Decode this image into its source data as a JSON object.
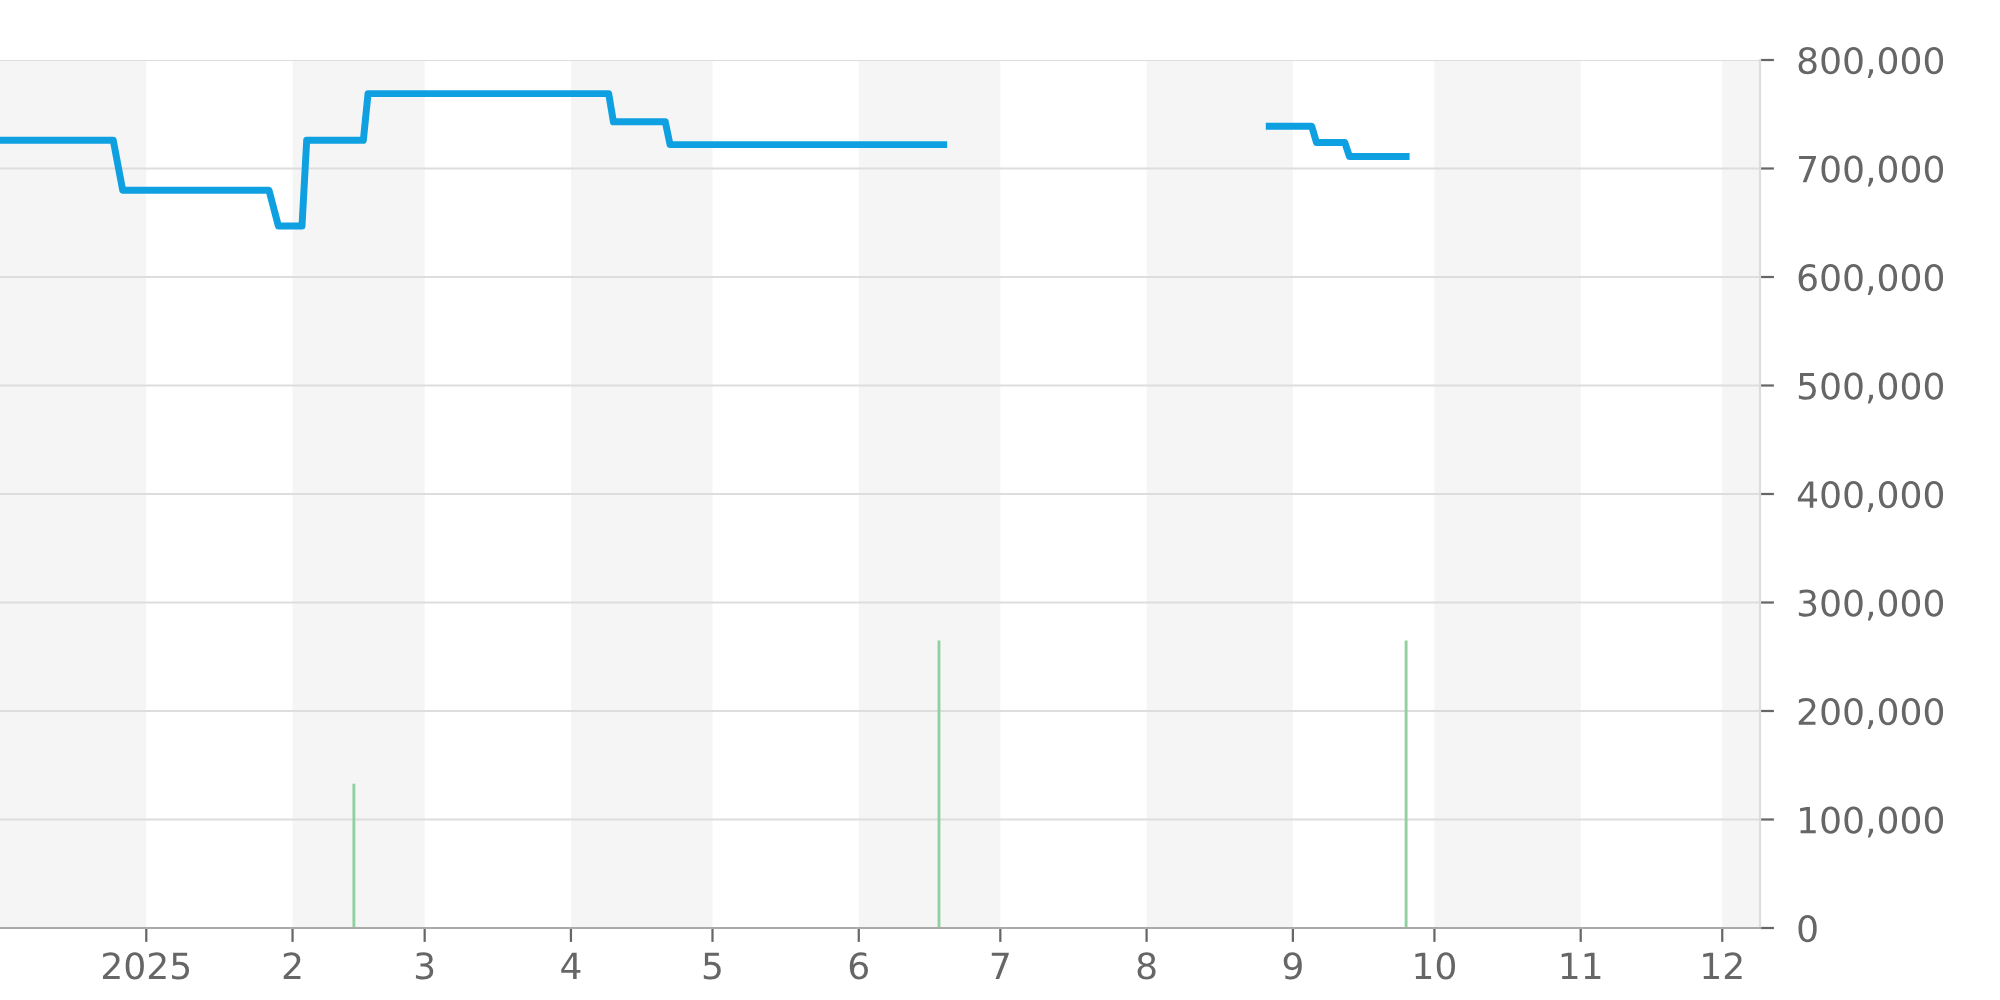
{
  "chart_data": {
    "type": "line",
    "xlim": [
      "2024-12-01",
      "2025-12-09"
    ],
    "xticks": [
      {
        "value": "2025-01-01",
        "label": "2025"
      },
      {
        "value": "2025-02-01",
        "label": "2"
      },
      {
        "value": "2025-03-01",
        "label": "3"
      },
      {
        "value": "2025-04-01",
        "label": "4"
      },
      {
        "value": "2025-05-01",
        "label": "5"
      },
      {
        "value": "2025-06-01",
        "label": "6"
      },
      {
        "value": "2025-07-01",
        "label": "7"
      },
      {
        "value": "2025-08-01",
        "label": "8"
      },
      {
        "value": "2025-09-01",
        "label": "9"
      },
      {
        "value": "2025-10-01",
        "label": "10"
      },
      {
        "value": "2025-11-01",
        "label": "11"
      },
      {
        "value": "2025-12-01",
        "label": "12"
      }
    ],
    "ylim": [
      0,
      800000
    ],
    "yticks": [
      {
        "value": 0,
        "label": "0"
      },
      {
        "value": 100000,
        "label": "100,000"
      },
      {
        "value": 200000,
        "label": "200,000"
      },
      {
        "value": 300000,
        "label": "300,000"
      },
      {
        "value": 400000,
        "label": "400,000"
      },
      {
        "value": 500000,
        "label": "500,000"
      },
      {
        "value": 600000,
        "label": "600,000"
      },
      {
        "value": 700000,
        "label": "700,000"
      },
      {
        "value": 800000,
        "label": "800,000"
      }
    ],
    "grid": "y",
    "marker": "none",
    "line_style": "solid",
    "bands": [
      {
        "axis": "x",
        "from": "2024-12-01",
        "to": "2025-01-01",
        "color": "#f5f5f5"
      },
      {
        "axis": "x",
        "from": "2025-02-01",
        "to": "2025-03-01",
        "color": "#f5f5f5"
      },
      {
        "axis": "x",
        "from": "2025-04-01",
        "to": "2025-05-01",
        "color": "#f5f5f5"
      },
      {
        "axis": "x",
        "from": "2025-06-01",
        "to": "2025-07-01",
        "color": "#f5f5f5"
      },
      {
        "axis": "x",
        "from": "2025-08-01",
        "to": "2025-09-01",
        "color": "#f5f5f5"
      },
      {
        "axis": "x",
        "from": "2025-10-01",
        "to": "2025-11-01",
        "color": "#f5f5f5"
      },
      {
        "axis": "x",
        "from": "2025-12-01",
        "to": "2025-12-09",
        "color": "#f5f5f5"
      }
    ],
    "series": [
      {
        "color": "#0ea0e0",
        "x": [
          "2024-12-01",
          "2024-12-25",
          "2024-12-27",
          "2025-01-27",
          "2025-01-29",
          "2025-02-03",
          "2025-02-04",
          "2025-02-16",
          "2025-02-17",
          "2025-04-09",
          "2025-04-10",
          "2025-04-21",
          "2025-04-22",
          "2025-06-19",
          "2025-07-20",
          "2025-08-27",
          "2025-09-05",
          "2025-09-06",
          "2025-09-12",
          "2025-09-13",
          "2025-09-25"
        ],
        "values": [
          726000,
          726000,
          680000,
          680000,
          647000,
          647000,
          726000,
          726000,
          769000,
          769000,
          743000,
          743000,
          722000,
          722000,
          null,
          739000,
          739000,
          724000,
          724000,
          711000,
          711000
        ]
      },
      {
        "type": "bar",
        "color": "#8fd19e",
        "x": [
          "2025-02-14",
          "2025-06-18",
          "2025-09-25"
        ],
        "values": [
          133000,
          265000,
          265000
        ]
      }
    ]
  }
}
